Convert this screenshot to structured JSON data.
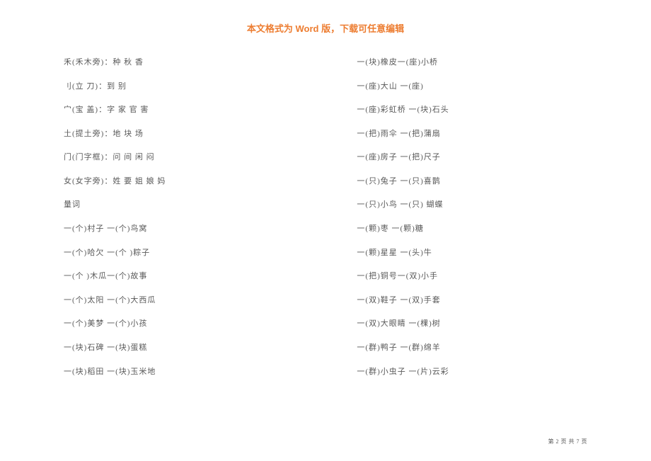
{
  "header": "本文格式为 Word 版，下载可任意编辑",
  "left_column": [
    "禾(禾木旁)：种  秋  香",
    "刂(立  刀)：到  别",
    "宀(宝  盖)：字  家  官  害",
    "土(提土旁)：地  块  场",
    "门(门字框)：问  间  闲  闷",
    "女(女字旁)：姓  要  姐  娘  妈",
    "量词",
    "一(个)村子  一(个)鸟窝",
    "一(个)哈欠  一(个  )粽子",
    "一(个  )木瓜一(个)故事",
    "一(个)太阳  一(个)大西瓜",
    "一(个)美梦  一(个)小孩",
    "一(块)石碑  一(块)蛋糕",
    "一(块)稻田  一(块)玉米地"
  ],
  "right_column": [
    "一(块)橡皮一(座)小桥",
    "一(座)大山  一(座)",
    "一(座)彩虹桥  一(块)石头",
    "一(把)雨伞  一(把)蒲扇",
    "一(座)房子  一(把)尺子",
    "一(只)兔子  一(只)喜鹊",
    "一(只)小鸟  一(只)  蝴蝶",
    "一(颗)枣  一(颗)糖",
    "一(颗)星星  一(头)牛",
    "一(把)铜号一(双)小手",
    "一(双)鞋子  一(双)手套",
    "一(双)大眼睛  一(棵)树",
    "一(群)鸭子  一(群)绵羊",
    "一(群)小虫子  一(片)云彩"
  ],
  "footer": "第 2 页 共 7 页"
}
